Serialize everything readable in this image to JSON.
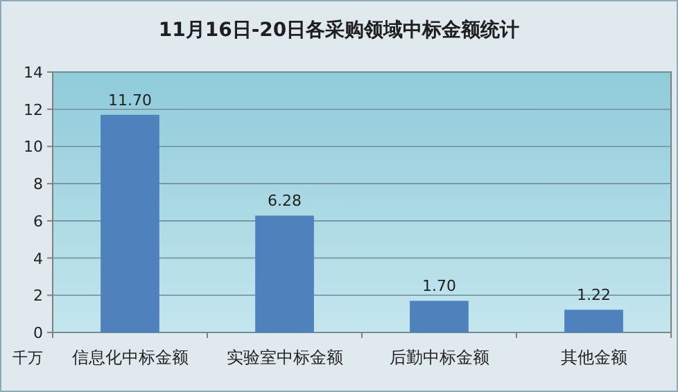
{
  "chart_data": {
    "type": "bar",
    "title": "11月16日-20日各采购领域中标金额统计",
    "ylabel": "千万",
    "categories": [
      "信息化中标金额",
      "实验室中标金额",
      "后勤中标金额",
      "其他金额"
    ],
    "values": [
      11.7,
      6.28,
      1.7,
      1.22
    ],
    "value_labels": [
      "11.70",
      "6.28",
      "1.70",
      "1.22"
    ],
    "color": "#4f81bd",
    "ylim": [
      0,
      14
    ],
    "yticks": [
      0,
      2,
      4,
      6,
      8,
      10,
      12,
      14
    ],
    "grid": "y"
  }
}
